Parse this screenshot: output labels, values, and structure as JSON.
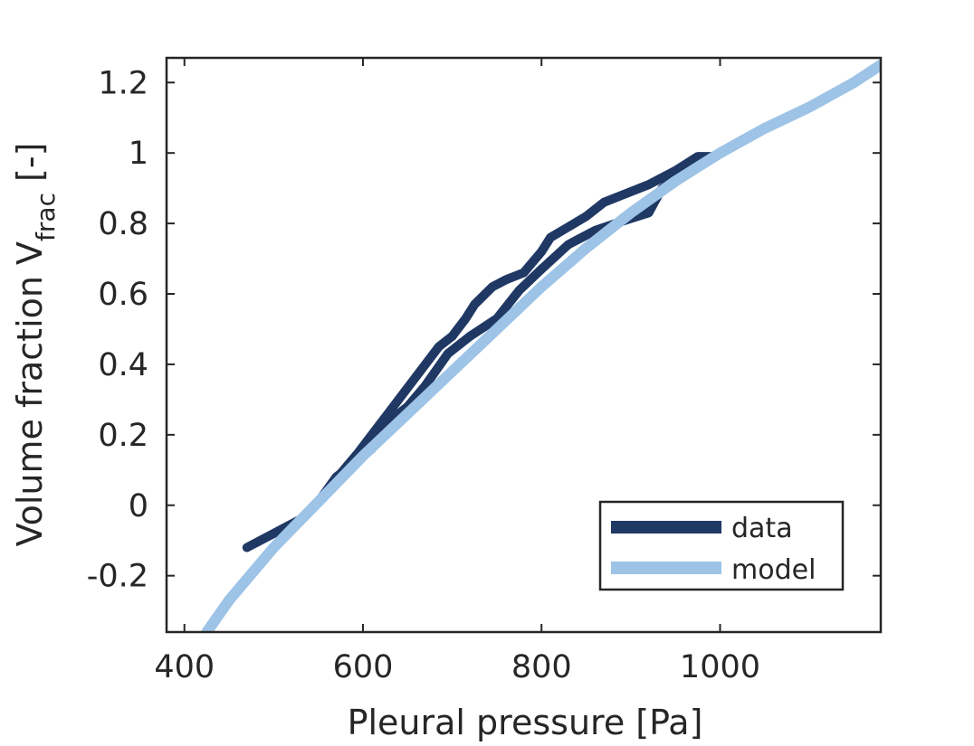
{
  "chart_data": {
    "type": "line",
    "xlabel": "Pleural pressure [Pa]",
    "ylabel_main": "Volume fraction V",
    "ylabel_sub": "frac",
    "ylabel_unit": " [-]",
    "xlim": [
      380,
      1180
    ],
    "ylim": [
      -0.36,
      1.27
    ],
    "xticks": [
      400,
      600,
      800,
      1000
    ],
    "xtick_labels": [
      "400",
      "600",
      "800",
      "1000"
    ],
    "yticks": [
      -0.2,
      0,
      0.2,
      0.4,
      0.6,
      0.8,
      1,
      1.2
    ],
    "ytick_labels": [
      "-0.2",
      "0",
      "0.2",
      "0.4",
      "0.6",
      "0.8",
      "1",
      "1.2"
    ],
    "legend_position": "bottom-right",
    "series": [
      {
        "name": "data",
        "color": "#1f3864",
        "x": [
          470,
          500,
          530,
          555,
          575,
          595,
          610,
          625,
          640,
          655,
          670,
          685,
          700,
          715,
          725,
          745,
          760,
          780,
          800,
          810,
          830,
          850,
          870,
          890,
          920,
          950,
          975,
          990,
          960,
          935,
          920,
          895,
          860,
          830,
          800,
          775,
          750,
          720,
          695,
          670,
          650,
          630,
          610,
          590,
          570,
          550
        ],
        "y": [
          -0.12,
          -0.08,
          -0.04,
          0.02,
          0.09,
          0.15,
          0.2,
          0.25,
          0.3,
          0.35,
          0.4,
          0.45,
          0.48,
          0.53,
          0.57,
          0.62,
          0.64,
          0.66,
          0.72,
          0.76,
          0.79,
          0.82,
          0.86,
          0.88,
          0.91,
          0.95,
          0.99,
          0.99,
          0.94,
          0.9,
          0.83,
          0.81,
          0.78,
          0.74,
          0.67,
          0.61,
          0.53,
          0.48,
          0.43,
          0.34,
          0.28,
          0.24,
          0.16,
          0.12,
          0.08,
          0.01
        ]
      },
      {
        "name": "model",
        "color": "#9dc3e6",
        "x": [
          425,
          450,
          500,
          550,
          600,
          650,
          700,
          750,
          800,
          850,
          900,
          950,
          1000,
          1050,
          1100,
          1150,
          1180
        ],
        "y": [
          -0.36,
          -0.27,
          -0.12,
          0.01,
          0.14,
          0.26,
          0.38,
          0.5,
          0.62,
          0.73,
          0.83,
          0.92,
          1.0,
          1.07,
          1.13,
          1.2,
          1.25
        ]
      }
    ]
  }
}
